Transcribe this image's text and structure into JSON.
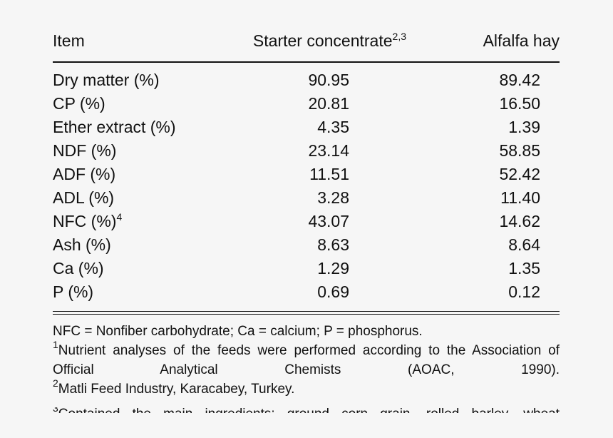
{
  "table": {
    "headers": {
      "item": "Item",
      "starter": "Starter concentrate",
      "starter_sup": "2,3",
      "alfalfa": "Alfalfa hay"
    },
    "rows": [
      {
        "item": "Dry matter (%)",
        "sup": "",
        "starter": "90.95",
        "alfalfa": "89.42"
      },
      {
        "item": "CP (%)",
        "sup": "",
        "starter": "20.81",
        "alfalfa": "16.50"
      },
      {
        "item": "Ether extract (%)",
        "sup": "",
        "starter": "4.35",
        "alfalfa": "1.39"
      },
      {
        "item": "NDF (%)",
        "sup": "",
        "starter": "23.14",
        "alfalfa": "58.85"
      },
      {
        "item": "ADF (%)",
        "sup": "",
        "starter": "11.51",
        "alfalfa": "52.42"
      },
      {
        "item": "ADL (%)",
        "sup": "",
        "starter": "3.28",
        "alfalfa": "11.40"
      },
      {
        "item": "NFC (%)",
        "sup": "4",
        "starter": "43.07",
        "alfalfa": "14.62"
      },
      {
        "item": "Ash (%)",
        "sup": "",
        "starter": "8.63",
        "alfalfa": "8.64"
      },
      {
        "item": "Ca (%)",
        "sup": "",
        "starter": "1.29",
        "alfalfa": "1.35"
      },
      {
        "item": "P (%)",
        "sup": "",
        "starter": "0.69",
        "alfalfa": "0.12"
      }
    ]
  },
  "footnotes": {
    "abbrev": "NFC = Nonfiber carbohydrate; Ca = calcium; P = phosphorus.",
    "n1_mark": "1",
    "n1_text": "Nutrient analyses of the feeds were performed according to the Association of Official Analytical Chemists (AOAC, 1990).",
    "n2_mark": "2",
    "n2_text": "Matli Feed Industry, Karacabey, Turkey.",
    "n3_mark": "3",
    "n3_text": "Contained the main ingredients: ground corn grain, rolled barley, wheat"
  }
}
